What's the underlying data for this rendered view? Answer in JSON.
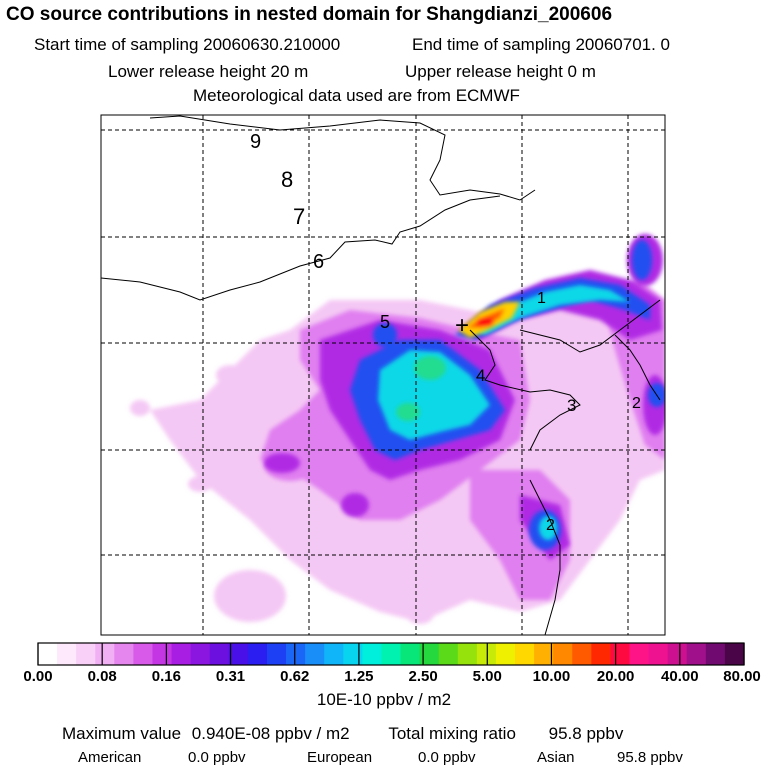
{
  "header": {
    "title": "CO  source contributions in nested domain for Shangdianzi_200606",
    "start_label": "Start time of sampling 20060630.210000",
    "end_label": "End time of sampling 20060701.     0",
    "lower_label": "Lower release height   20 m",
    "upper_label": "Upper release height    0 m",
    "met_label": "Meteorological data used are from ECMWF"
  },
  "contour_labels": [
    "9",
    "8",
    "7",
    "6",
    "5",
    "4",
    "3",
    "2",
    "1",
    "2"
  ],
  "receptor_marker": "+",
  "colorbar": {
    "tick_labels": [
      "0.00",
      "0.08",
      "0.16",
      "0.31",
      "0.62",
      "1.25",
      "2.50",
      "5.00",
      "10.00",
      "20.00",
      "40.00",
      "80.00"
    ],
    "unit": "10E-10 ppbv / m2",
    "colors": [
      "#ffffff",
      "#fde8fc",
      "#f8d0f8",
      "#f1b0f4",
      "#e585ee",
      "#d75ae9",
      "#c435e4",
      "#a81ee2",
      "#8a16e0",
      "#6b10de",
      "#4a10e8",
      "#2a1ff0",
      "#1e40f4",
      "#1a66f6",
      "#1a8ef8",
      "#10b4f8",
      "#08d4f0",
      "#00eedc",
      "#00f2b0",
      "#08e67a",
      "#24d83e",
      "#5ada18",
      "#96e20c",
      "#c8ea08",
      "#eef000",
      "#ffd800",
      "#ffb000",
      "#ff8800",
      "#ff5a00",
      "#ff2800",
      "#ff0a40",
      "#ff1488",
      "#ee1290",
      "#cc1090",
      "#a0108a",
      "#700a70",
      "#4a0448"
    ]
  },
  "summary": {
    "max_label": "Maximum value",
    "max_value": "0.940E-08 ppbv / m2",
    "total_label": "Total mixing ratio",
    "total_value": "95.8 ppbv",
    "regions": [
      {
        "name": "American",
        "value": "0.0 ppbv"
      },
      {
        "name": "European",
        "value": "0.0 ppbv"
      },
      {
        "name": "Asian",
        "value": "95.8 ppbv"
      }
    ]
  }
}
